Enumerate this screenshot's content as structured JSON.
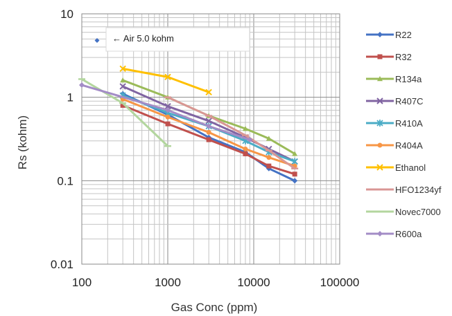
{
  "chart_data": {
    "type": "line",
    "xlabel": "Gas Conc (ppm)",
    "ylabel": "Rs (kohm)",
    "x_scale": "log",
    "y_scale": "log",
    "xlim": [
      100,
      100000
    ],
    "ylim": [
      0.01,
      10
    ],
    "x_ticks": [
      "100",
      "1000",
      "10000",
      "100000"
    ],
    "y_ticks": [
      "0.01",
      "0.1",
      "1",
      "10"
    ],
    "grid": true,
    "legend_position": "right",
    "annotation": "← Air  5.0 kohm",
    "series": [
      {
        "name": "R22",
        "color": "#4472C4",
        "marker": "diamond",
        "x": [
          300,
          1000,
          3000,
          8000,
          15000,
          30000
        ],
        "y": [
          1.1,
          0.62,
          0.33,
          0.22,
          0.14,
          0.1
        ]
      },
      {
        "name": "R32",
        "color": "#C0504D",
        "marker": "square",
        "x": [
          300,
          1000,
          3000,
          8000,
          15000,
          30000
        ],
        "y": [
          0.8,
          0.48,
          0.31,
          0.21,
          0.15,
          0.12
        ]
      },
      {
        "name": "R134a",
        "color": "#9BBB59",
        "marker": "triangle",
        "x": [
          300,
          1000,
          3000,
          8000,
          15000,
          30000
        ],
        "y": [
          1.6,
          1.0,
          0.6,
          0.42,
          0.32,
          0.21
        ]
      },
      {
        "name": "R407C",
        "color": "#8064A2",
        "marker": "x",
        "x": [
          300,
          1000,
          3000,
          8000,
          15000,
          30000
        ],
        "y": [
          1.35,
          0.78,
          0.52,
          0.33,
          0.24,
          0.17
        ]
      },
      {
        "name": "R410A",
        "color": "#4BACC6",
        "marker": "star",
        "x": [
          300,
          1000,
          3000,
          8000,
          15000,
          30000
        ],
        "y": [
          1.05,
          0.65,
          0.45,
          0.3,
          0.22,
          0.17
        ]
      },
      {
        "name": "R404A",
        "color": "#F79646",
        "marker": "circle",
        "x": [
          300,
          1000,
          3000,
          8000,
          15000,
          30000
        ],
        "y": [
          0.95,
          0.58,
          0.38,
          0.24,
          0.19,
          0.15
        ]
      },
      {
        "name": "Ethanol",
        "color": "#FFC000",
        "marker": "x",
        "x": [
          300,
          1000,
          3000
        ],
        "y": [
          2.2,
          1.75,
          1.15
        ]
      },
      {
        "name": "HFO1234yf",
        "color": "#D99694",
        "marker": "dash",
        "x": [
          1000,
          3000,
          8000,
          15000,
          30000
        ],
        "y": [
          1.0,
          0.6,
          0.35,
          0.23,
          0.14
        ]
      },
      {
        "name": "Novec7000",
        "color": "#B3D69E",
        "marker": "dash",
        "x": [
          100,
          300,
          1000
        ],
        "y": [
          1.65,
          0.85,
          0.26
        ]
      },
      {
        "name": "R600a",
        "color": "#A38CC6",
        "marker": "diamond",
        "x": [
          100,
          1000,
          3000,
          9000
        ],
        "y": [
          1.4,
          0.7,
          0.45,
          0.31
        ]
      }
    ]
  }
}
